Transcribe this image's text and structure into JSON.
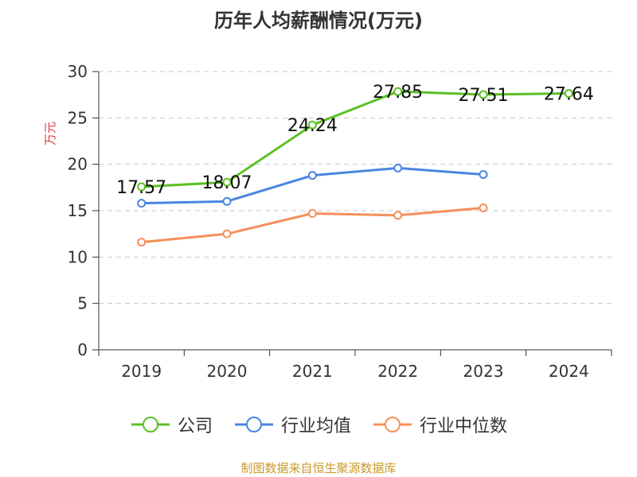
{
  "chart_data": {
    "type": "line",
    "title": "历年人均薪酬情况(万元)",
    "ylabel": "万元",
    "ylabel_color": "#e0393e",
    "categories": [
      "2019",
      "2020",
      "2021",
      "2022",
      "2023",
      "2024"
    ],
    "ylim": [
      0,
      30
    ],
    "yticks": [
      0,
      5,
      10,
      15,
      20,
      25,
      30
    ],
    "grid": true,
    "legend_position": "bottom",
    "series": [
      {
        "name": "公司",
        "color": "#5cc025",
        "values": [
          17.57,
          18.07,
          24.24,
          27.85,
          27.51,
          27.64
        ],
        "labels": [
          "17.57",
          "18.07",
          "24.24",
          "27.85",
          "27.51",
          "27.64"
        ]
      },
      {
        "name": "行业均值",
        "color": "#4a86e0",
        "values": [
          15.8,
          16.0,
          18.8,
          19.6,
          18.9,
          null
        ]
      },
      {
        "name": "行业中位数",
        "color": "#f5905a",
        "values": [
          11.6,
          12.5,
          14.7,
          14.5,
          15.3,
          null
        ]
      }
    ]
  },
  "source": "制图数据来自恒生聚源数据库"
}
